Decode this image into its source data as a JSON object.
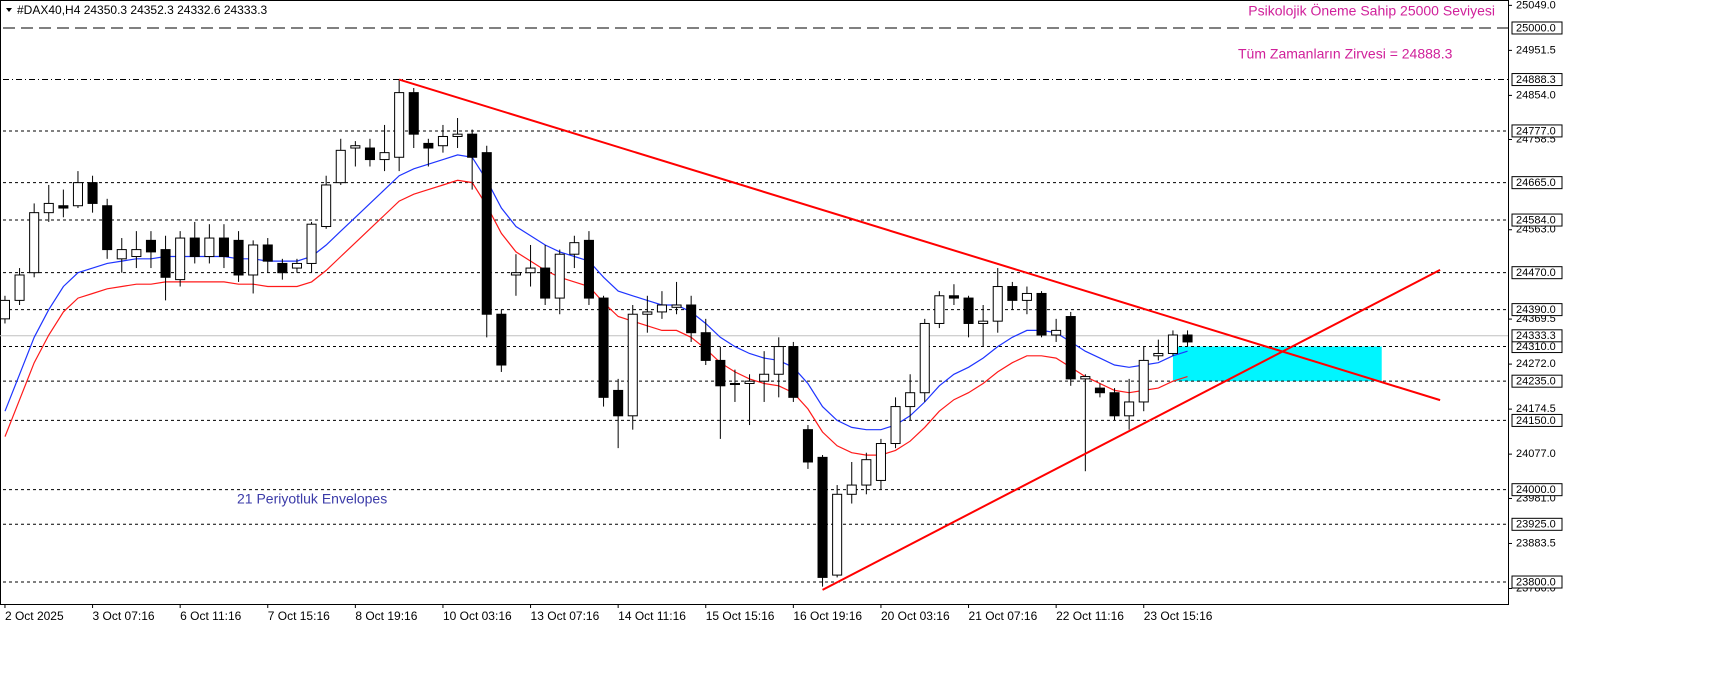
{
  "chart_data": {
    "type": "candlestick",
    "title": "#DAX40,H4  24350.3 24352.3 24332.6 24333.3",
    "annotations": [
      {
        "text": "Psikolojik Öneme Sahip 25000 Seviyesi",
        "color": "#d0209a"
      },
      {
        "text": "Tüm Zamanların Zirvesi = 24888.3",
        "color": "#d0209a"
      },
      {
        "text": "21 Periyotluk Envelopes",
        "color": "#3b3ba8"
      }
    ],
    "categories": [
      "2 Oct 2025",
      null,
      null,
      null,
      null,
      null,
      "3 Oct 07:16",
      null,
      null,
      null,
      null,
      null,
      "6 Oct 11:16",
      null,
      null,
      null,
      null,
      null,
      "7 Oct 15:16",
      null,
      null,
      null,
      null,
      null,
      "8 Oct 19:16",
      null,
      null,
      null,
      null,
      null,
      "10 Oct 03:16",
      null,
      null,
      null,
      null,
      null,
      "13 Oct 07:16",
      null,
      null,
      null,
      null,
      null,
      "14 Oct 11:16",
      null,
      null,
      null,
      null,
      null,
      "15 Oct 15:16",
      null,
      null,
      null,
      null,
      null,
      "16 Oct 19:16",
      null,
      null,
      null,
      null,
      null,
      "20 Oct 03:16",
      null,
      null,
      null,
      null,
      null,
      "21 Oct 07:16",
      null,
      null,
      null,
      null,
      null,
      "22 Oct 11:16",
      null,
      null,
      null,
      null,
      null,
      "23 Oct 15:16",
      null,
      null,
      null
    ],
    "open": [
      24370,
      24410,
      24470,
      24600,
      24615,
      24615,
      24665,
      24615,
      24500,
      24505,
      24540,
      24520,
      24455,
      24545,
      24505,
      24545,
      24540,
      24465,
      24530,
      24490,
      24480,
      24490,
      24570,
      24665,
      24740,
      24740,
      24715,
      24720,
      24860,
      24750,
      24745,
      24765,
      24770,
      24730,
      24380,
      24465,
      24470,
      24480,
      24415,
      24510,
      24540,
      24415,
      24215,
      24160,
      24380,
      24385,
      24395,
      24400,
      24340,
      24280,
      24230,
      24230,
      24235,
      24250,
      24310,
      24130,
      24070,
      23815,
      23990,
      24010,
      24020,
      24100,
      24180,
      24210,
      24360,
      24420,
      24415,
      24360,
      24365,
      24440,
      24410,
      24425,
      24335,
      24375,
      24240,
      24220,
      24210,
      24160,
      24190,
      24290,
      24295,
      24335
    ],
    "high": [
      24420,
      24480,
      24620,
      24660,
      24650,
      24690,
      24680,
      24630,
      24545,
      24560,
      24560,
      24550,
      24560,
      24580,
      24575,
      24575,
      24560,
      24540,
      24545,
      24500,
      24500,
      24580,
      24680,
      24760,
      24755,
      24760,
      24790,
      24888.3,
      24870,
      24760,
      24790,
      24805,
      24780,
      24745,
      24390,
      24510,
      24530,
      24530,
      24520,
      24550,
      24560,
      24420,
      24240,
      24400,
      24420,
      24430,
      24450,
      24420,
      24370,
      24310,
      24260,
      24250,
      24300,
      24330,
      24320,
      24140,
      24075,
      24010,
      24060,
      24080,
      24110,
      24200,
      24250,
      24370,
      24430,
      24445,
      24420,
      24400,
      24480,
      24450,
      24440,
      24430,
      24370,
      24385,
      24250,
      24230,
      24220,
      24240,
      24310,
      24325,
      24345,
      24345
    ],
    "low": [
      24360,
      24400,
      24460,
      24580,
      24590,
      24610,
      24600,
      24500,
      24470,
      24480,
      24480,
      24410,
      24440,
      24490,
      24490,
      24480,
      24450,
      24425,
      24470,
      24455,
      24470,
      24470,
      24565,
      24660,
      24700,
      24700,
      24690,
      24690,
      24740,
      24700,
      24730,
      24740,
      24650,
      24330,
      24255,
      24420,
      24440,
      24400,
      24380,
      24480,
      24400,
      24180,
      24090,
      24130,
      24340,
      24370,
      24380,
      24320,
      24270,
      24110,
      24190,
      24140,
      24190,
      24200,
      24190,
      24045,
      23790,
      23810,
      23970,
      23990,
      24000,
      24090,
      24150,
      24190,
      24350,
      24400,
      24330,
      24310,
      24340,
      24390,
      24380,
      24330,
      24320,
      24225,
      24040,
      24200,
      24150,
      24130,
      24170,
      24280,
      24290,
      24310
    ],
    "close": [
      24410,
      24465,
      24600,
      24620,
      24610,
      24665,
      24620,
      24520,
      24520,
      24520,
      24515,
      24460,
      24545,
      24505,
      24545,
      24505,
      24465,
      24530,
      24495,
      24470,
      24490,
      24575,
      24660,
      24735,
      24745,
      24715,
      24730,
      24860,
      24770,
      24740,
      24765,
      24770,
      24720,
      24380,
      24270,
      24470,
      24480,
      24415,
      24510,
      24535,
      24415,
      24200,
      24160,
      24380,
      24385,
      24400,
      24400,
      24340,
      24280,
      24225,
      24228,
      24235,
      24250,
      24310,
      24200,
      24060,
      23810,
      23990,
      24010,
      24065,
      24100,
      24180,
      24210,
      24360,
      24420,
      24415,
      24360,
      24365,
      24440,
      24410,
      24425,
      24335,
      24345,
      24240,
      24245,
      24210,
      24160,
      24190,
      24280,
      24295,
      24335,
      24320
    ],
    "series": [
      {
        "color": "#1f35ff",
        "values": [
          24170,
          24250,
          24330,
          24390,
          24440,
          24470,
          24480,
          24490,
          24495,
          24500,
          24500,
          24505,
          24505,
          24505,
          24505,
          24505,
          24500,
          24500,
          24495,
          24495,
          24495,
          24505,
          24530,
          24560,
          24590,
          24620,
          24650,
          24680,
          24695,
          24705,
          24715,
          24725,
          24720,
          24670,
          24610,
          24570,
          24550,
          24530,
          24515,
          24505,
          24495,
          24460,
          24430,
          24420,
          24410,
          24400,
          24400,
          24385,
          24360,
          24330,
          24310,
          24295,
          24285,
          24280,
          24265,
          24230,
          24180,
          24150,
          24135,
          24130,
          24130,
          24140,
          24160,
          24190,
          24225,
          24250,
          24265,
          24285,
          24310,
          24330,
          24345,
          24345,
          24340,
          24320,
          24300,
          24285,
          24270,
          24265,
          24270,
          24275,
          24290,
          24300
        ]
      },
      {
        "color": "#ff1a1a",
        "values": [
          24115,
          24195,
          24275,
          24335,
          24385,
          24415,
          24425,
          24435,
          24440,
          24445,
          24445,
          24450,
          24450,
          24450,
          24450,
          24450,
          24445,
          24445,
          24440,
          24440,
          24440,
          24450,
          24475,
          24505,
          24535,
          24565,
          24595,
          24625,
          24640,
          24650,
          24660,
          24670,
          24665,
          24615,
          24555,
          24515,
          24495,
          24475,
          24460,
          24450,
          24440,
          24405,
          24375,
          24365,
          24355,
          24345,
          24345,
          24330,
          24305,
          24275,
          24255,
          24240,
          24230,
          24225,
          24210,
          24175,
          24125,
          24095,
          24080,
          24075,
          24075,
          24085,
          24105,
          24135,
          24170,
          24195,
          24210,
          24230,
          24255,
          24275,
          24290,
          24290,
          24285,
          24265,
          24245,
          24230,
          24215,
          24210,
          24215,
          24220,
          24235,
          24245
        ]
      }
    ],
    "trendlines": [
      {
        "color": "#ff0000",
        "x": [
          27,
          98.3
        ],
        "y": [
          24888.3,
          24194
        ]
      },
      {
        "color": "#ff0000",
        "x": [
          56,
          98.3
        ],
        "y": [
          23783,
          24476
        ]
      }
    ],
    "zones": [
      {
        "color": "#00f5ff",
        "x": [
          80,
          94.3
        ],
        "y": [
          24235,
          24310
        ]
      }
    ],
    "levels": [
      {
        "value": 25000,
        "label": "25000.0"
      },
      {
        "value": 24888.3,
        "label": "24888.3"
      },
      {
        "value": 24777,
        "label": "24777.0"
      },
      {
        "value": 24665,
        "label": "24665.0"
      },
      {
        "value": 24584,
        "label": "24584.0"
      },
      {
        "value": 24470,
        "label": "24470.0"
      },
      {
        "value": 24390,
        "label": "24390.0"
      },
      {
        "value": 24310,
        "label": "24310.0"
      },
      {
        "value": 24235,
        "label": "24235.0"
      },
      {
        "value": 24150,
        "label": "24150.0"
      },
      {
        "value": 24000,
        "label": "24000.0"
      },
      {
        "value": 23925,
        "label": "23925.0"
      },
      {
        "value": 23800,
        "label": "23800.0"
      }
    ],
    "current_price": {
      "value": 24333.3,
      "label": "24333.3"
    },
    "xlim": [
      -0.34,
      102.95
    ],
    "ylim": [
      23752.4,
      25060.6
    ],
    "yticks": [
      {
        "value": 25049,
        "label": "25049.0"
      },
      {
        "value": 24951.5,
        "label": "24951.5"
      },
      {
        "value": 24854,
        "label": "24854.0"
      },
      {
        "value": 24758.5,
        "label": "24758.5"
      },
      {
        "value": 24563,
        "label": "24563.0"
      },
      {
        "value": 24369.5,
        "label": "24369.5"
      },
      {
        "value": 24272,
        "label": "24272.0"
      },
      {
        "value": 24174.5,
        "label": "24174.5"
      },
      {
        "value": 24077,
        "label": "24077.0"
      },
      {
        "value": 23981,
        "label": "23981.0"
      },
      {
        "value": 23883.5,
        "label": "23883.5"
      },
      {
        "value": 23786,
        "label": "23786.0"
      }
    ]
  }
}
